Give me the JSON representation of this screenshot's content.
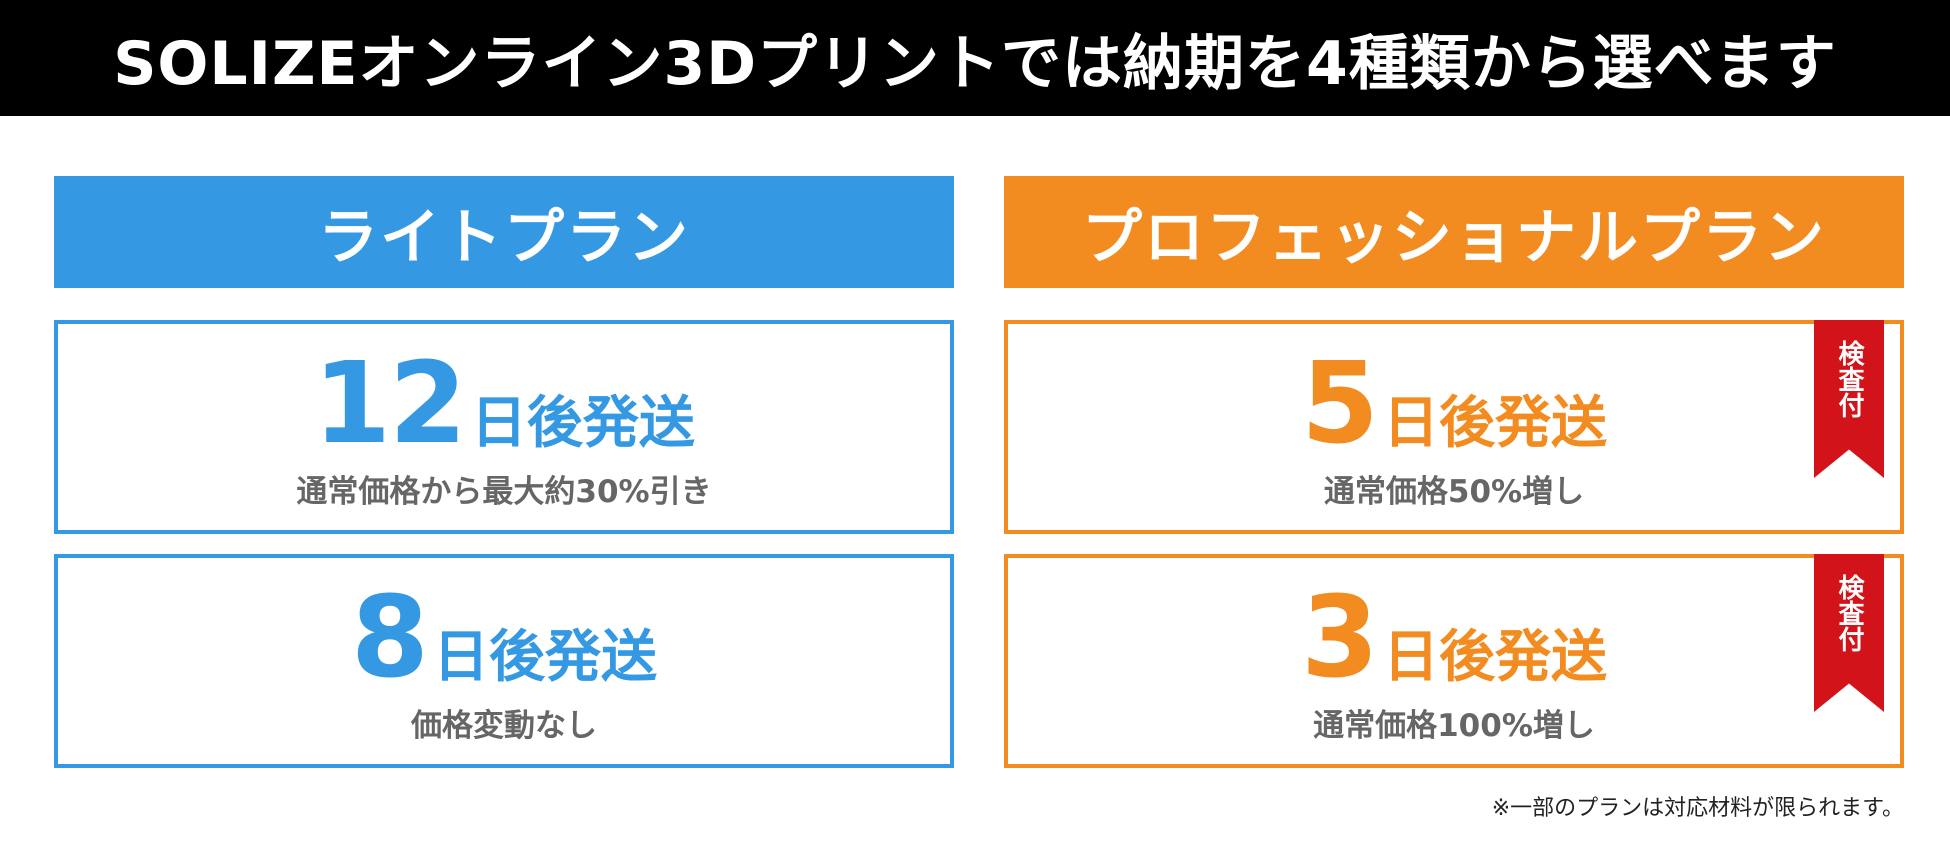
{
  "title": "SOLIZEオンライン3Dプリントでは納期を4種類から選べます",
  "plans": {
    "light": {
      "name": "ライトプラン",
      "color": "#3598e3",
      "options": [
        {
          "days": "12",
          "unit": "日後発送",
          "price_note": "通常価格から最大約30%引き"
        },
        {
          "days": "8",
          "unit": "日後発送",
          "price_note": "価格変動なし"
        }
      ]
    },
    "pro": {
      "name": "プロフェッショナルプラン",
      "color": "#f28c20",
      "options": [
        {
          "days": "5",
          "unit": "日後発送",
          "price_note": "通常価格50%増し",
          "badge": "検査付"
        },
        {
          "days": "3",
          "unit": "日後発送",
          "price_note": "通常価格100%増し",
          "badge": "検査付"
        }
      ]
    }
  },
  "badge_color": "#d2141a",
  "footnote": "※一部のプランは対応材料が限られます。"
}
